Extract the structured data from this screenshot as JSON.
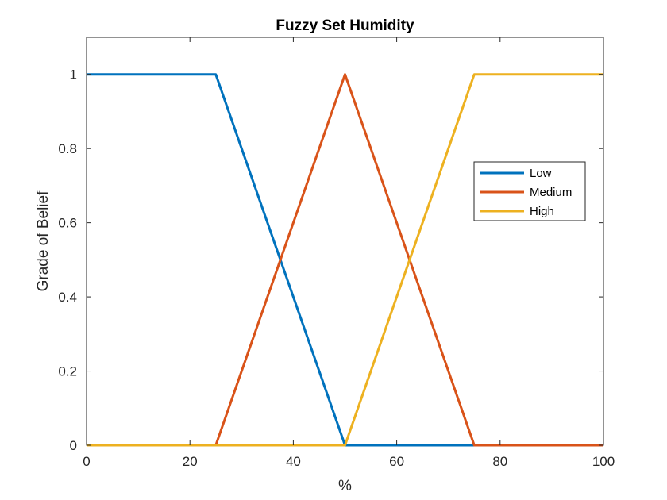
{
  "chart_data": {
    "type": "line",
    "title": "Fuzzy Set Humidity",
    "xlabel": "%",
    "ylabel": "Grade of Belief",
    "xlim": [
      0,
      100
    ],
    "ylim": [
      0,
      1.1
    ],
    "xticks": [
      0,
      20,
      40,
      60,
      80,
      100
    ],
    "yticks": [
      0,
      0.2,
      0.4,
      0.6,
      0.8,
      1
    ],
    "xtick_labels": [
      "0",
      "20",
      "40",
      "60",
      "80",
      "100"
    ],
    "ytick_labels": [
      "0",
      "0.2",
      "0.4",
      "0.6",
      "0.8",
      "1"
    ],
    "grid": false,
    "legend_position": "right",
    "series": [
      {
        "name": "Low",
        "color": "#0072BD",
        "x": [
          0,
          25,
          50,
          100
        ],
        "y": [
          1,
          1,
          0,
          0
        ]
      },
      {
        "name": "Medium",
        "color": "#D95319",
        "x": [
          0,
          25,
          50,
          75,
          100
        ],
        "y": [
          0,
          0,
          1,
          0,
          0
        ]
      },
      {
        "name": "High",
        "color": "#EDB120",
        "x": [
          0,
          50,
          75,
          100
        ],
        "y": [
          0,
          0,
          1,
          1
        ]
      }
    ]
  }
}
